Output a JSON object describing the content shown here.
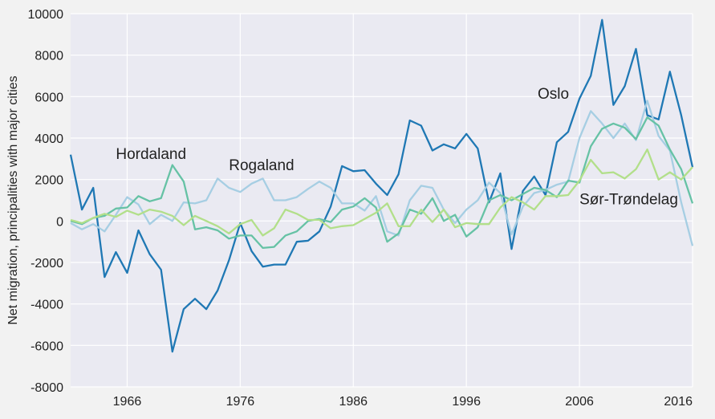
{
  "chart_data": {
    "type": "line",
    "ylabel": "Net migration, principalities with major cities",
    "xlabel": "",
    "xlim": [
      1961,
      2016
    ],
    "ylim": [
      -8000,
      10000
    ],
    "x_ticks": [
      1966,
      1976,
      1986,
      1996,
      2006,
      2016
    ],
    "y_ticks": [
      -8000,
      -6000,
      -4000,
      -2000,
      0,
      2000,
      4000,
      6000,
      8000,
      10000
    ],
    "grid": true,
    "legend": "none",
    "colors": {
      "background": "#eaeaf2",
      "figure": "#f2f2f2",
      "grid": "#ffffff"
    },
    "x": [
      1961,
      1962,
      1963,
      1964,
      1965,
      1966,
      1967,
      1968,
      1969,
      1970,
      1971,
      1972,
      1973,
      1974,
      1975,
      1976,
      1977,
      1978,
      1979,
      1980,
      1981,
      1982,
      1983,
      1984,
      1985,
      1986,
      1987,
      1988,
      1989,
      1990,
      1991,
      1992,
      1993,
      1994,
      1995,
      1996,
      1997,
      1998,
      1999,
      2000,
      2001,
      2002,
      2003,
      2004,
      2005,
      2006,
      2007,
      2008,
      2009,
      2010,
      2011,
      2012,
      2013,
      2014,
      2015,
      2016
    ],
    "series": [
      {
        "color": "#1f78b4",
        "values": [
          3200,
          550,
          1600,
          -2700,
          -1500,
          -2500,
          -450,
          -1600,
          -2350,
          -6300,
          -4250,
          -3750,
          -4250,
          -3350,
          -1900,
          -100,
          -1450,
          -2200,
          -2100,
          -2100,
          -1000,
          -950,
          -500,
          700,
          2650,
          2400,
          2450,
          1800,
          1250,
          2250,
          4850,
          4600,
          3400,
          3700,
          3500,
          4200,
          3500,
          900,
          2300,
          -1350,
          1450,
          2150,
          1250,
          3800,
          4300,
          5900,
          7000,
          9700,
          5600,
          6500,
          8300,
          5100,
          4900,
          7200,
          5100,
          2600
        ]
      },
      {
        "color": "#a6cee3",
        "values": [
          -100,
          -400,
          -150,
          -500,
          300,
          1150,
          800,
          -150,
          300,
          0,
          900,
          850,
          1000,
          2050,
          1600,
          1400,
          1800,
          2050,
          1000,
          1000,
          1150,
          1550,
          1900,
          1600,
          850,
          850,
          500,
          1200,
          -500,
          -700,
          1000,
          1700,
          1600,
          550,
          -100,
          550,
          1000,
          1850,
          1350,
          -650,
          700,
          1350,
          1500,
          1750,
          1900,
          4000,
          5300,
          4700,
          4000,
          4700,
          3900,
          5800,
          4100,
          3400,
          900,
          -1200
        ]
      },
      {
        "color": "#66c2a5",
        "values": [
          0,
          -150,
          150,
          250,
          600,
          650,
          1200,
          950,
          1100,
          2700,
          1900,
          -400,
          -300,
          -450,
          -850,
          -700,
          -700,
          -1300,
          -1250,
          -700,
          -500,
          0,
          100,
          -50,
          550,
          700,
          1100,
          650,
          -1000,
          -600,
          550,
          350,
          1100,
          0,
          300,
          -750,
          -300,
          1000,
          1250,
          1000,
          1300,
          1600,
          1500,
          1150,
          1950,
          1850,
          3600,
          4450,
          4700,
          4500,
          3950,
          5000,
          4600,
          3450,
          2500,
          850
        ]
      },
      {
        "color": "#b2df8a",
        "values": [
          50,
          -100,
          150,
          350,
          200,
          500,
          300,
          550,
          450,
          250,
          -200,
          250,
          0,
          -250,
          -600,
          -150,
          50,
          -700,
          -350,
          550,
          350,
          50,
          50,
          -350,
          -250,
          -200,
          100,
          400,
          850,
          -250,
          -250,
          550,
          -50,
          550,
          -300,
          -100,
          -150,
          -150,
          650,
          1150,
          900,
          550,
          1200,
          1200,
          1250,
          1950,
          2950,
          2300,
          2350,
          2050,
          2500,
          3450,
          2000,
          2350,
          2000,
          2600
        ]
      }
    ],
    "annotations": [
      {
        "text": "Hordaland",
        "x": 1965.0,
        "y": 3000
      },
      {
        "text": "Rogaland",
        "x": 1975.0,
        "y": 2450
      },
      {
        "text": "Oslo",
        "x": 2002.3,
        "y": 5900
      },
      {
        "text": "Sør-Trøndelag",
        "x": 2006.0,
        "y": 800
      }
    ]
  }
}
